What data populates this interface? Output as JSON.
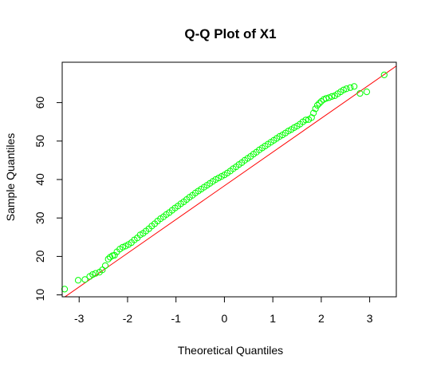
{
  "chart_data": {
    "type": "scatter",
    "title": "Q-Q Plot of X1",
    "xlabel": "Theoretical Quantiles",
    "ylabel": "Sample Quantiles",
    "xlim": [
      -3.35,
      3.55
    ],
    "ylim": [
      9.5,
      70.5
    ],
    "x_ticks": [
      -3,
      -2,
      -1,
      0,
      1,
      2,
      3
    ],
    "x_tick_labels": [
      "-3",
      "-2",
      "-1",
      "0",
      "1",
      "2",
      "3"
    ],
    "y_ticks": [
      10,
      20,
      30,
      40,
      50,
      60
    ],
    "y_tick_labels": [
      "10",
      "20",
      "30",
      "40",
      "50",
      "60"
    ],
    "grid": false,
    "point_color": "#00ff00",
    "line_color": "#ff0000",
    "reference_line": {
      "x": [
        -3.35,
        3.55
      ],
      "y": [
        9.0,
        69.5
      ]
    },
    "series": [
      {
        "x": [
          -3.3,
          -3.02,
          -2.88,
          -2.78,
          -2.72,
          -2.66,
          -2.58,
          -2.52,
          -2.46,
          -2.4,
          -2.36,
          -2.31,
          -2.27,
          -2.22,
          -2.16,
          -2.1,
          -2.04,
          -1.98,
          -1.92,
          -1.86,
          -1.8,
          -1.74,
          -1.68,
          -1.62,
          -1.56,
          -1.5,
          -1.44,
          -1.38,
          -1.32,
          -1.26,
          -1.2,
          -1.14,
          -1.08,
          -1.02,
          -0.96,
          -0.9,
          -0.84,
          -0.78,
          -0.72,
          -0.66,
          -0.6,
          -0.54,
          -0.48,
          -0.42,
          -0.36,
          -0.3,
          -0.24,
          -0.18,
          -0.12,
          -0.06,
          0.0,
          0.06,
          0.12,
          0.18,
          0.24,
          0.3,
          0.36,
          0.42,
          0.48,
          0.54,
          0.6,
          0.66,
          0.72,
          0.78,
          0.84,
          0.9,
          0.96,
          1.02,
          1.08,
          1.14,
          1.2,
          1.26,
          1.32,
          1.38,
          1.44,
          1.5,
          1.56,
          1.62,
          1.68,
          1.74,
          1.8,
          1.84,
          1.88,
          1.92,
          1.96,
          2.0,
          2.05,
          2.1,
          2.16,
          2.22,
          2.28,
          2.34,
          2.4,
          2.46,
          2.52,
          2.6,
          2.68,
          2.8,
          2.94,
          3.3
        ],
        "y": [
          11.5,
          13.8,
          14.0,
          14.8,
          15.3,
          15.6,
          15.9,
          16.5,
          17.6,
          19.3,
          19.8,
          20.2,
          20.3,
          21.2,
          21.9,
          22.4,
          22.7,
          23.1,
          23.6,
          24.3,
          24.8,
          25.6,
          26.0,
          26.6,
          27.2,
          27.9,
          28.5,
          29.2,
          29.8,
          30.3,
          30.9,
          31.4,
          32.0,
          32.6,
          33.1,
          33.7,
          34.2,
          34.8,
          35.4,
          35.9,
          36.5,
          37.0,
          37.5,
          38.0,
          38.5,
          39.0,
          39.5,
          40.0,
          40.4,
          40.8,
          41.2,
          41.7,
          42.2,
          42.8,
          43.3,
          43.9,
          44.4,
          45.0,
          45.5,
          46.0,
          46.6,
          47.1,
          47.7,
          48.2,
          48.7,
          49.2,
          49.7,
          50.2,
          50.7,
          51.2,
          51.6,
          52.1,
          52.6,
          53.0,
          53.5,
          53.9,
          54.4,
          55.0,
          55.5,
          55.6,
          56.1,
          57.3,
          58.4,
          59.3,
          59.8,
          60.3,
          60.8,
          61.1,
          61.3,
          61.6,
          61.8,
          62.3,
          62.8,
          63.3,
          63.6,
          63.9,
          64.2,
          62.4,
          62.8,
          67.2
        ]
      }
    ]
  }
}
